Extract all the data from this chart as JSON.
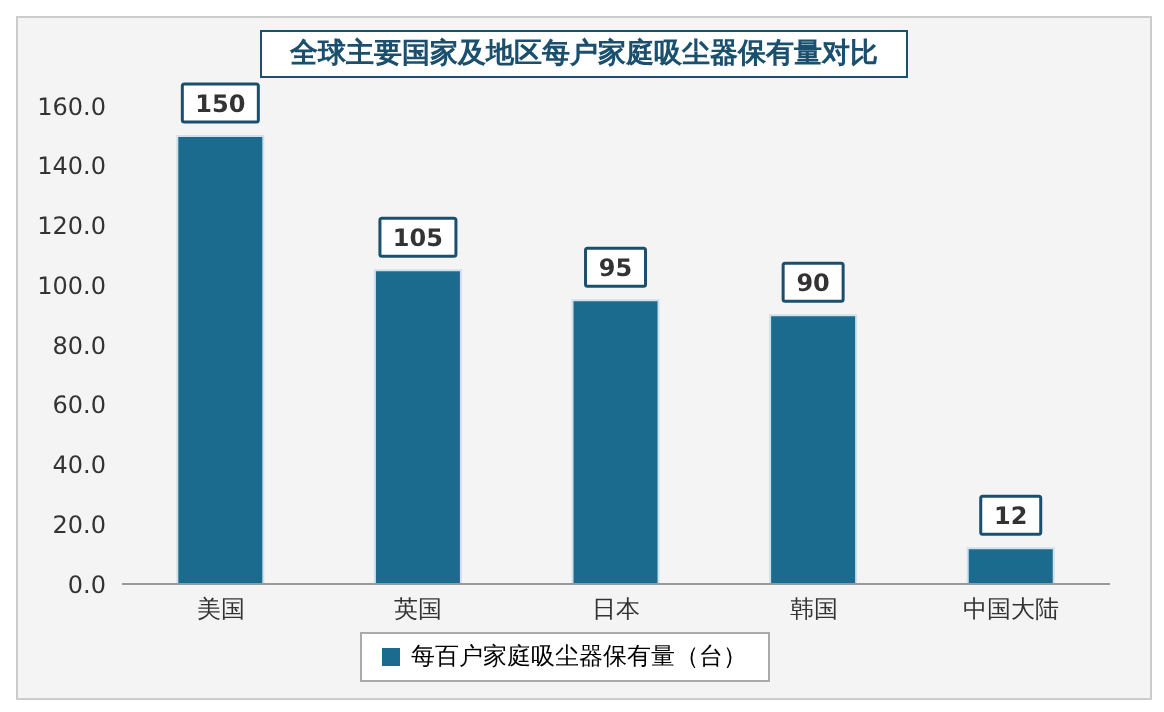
{
  "chart_data": {
    "type": "bar",
    "title": "全球主要国家及地区每户家庭吸尘器保有量对比",
    "categories": [
      "美国",
      "英国",
      "日本",
      "韩国",
      "中国大陆"
    ],
    "series": [
      {
        "name": "每百户家庭吸尘器保有量（台）",
        "color": "#1b6b8e",
        "values": [
          150,
          105,
          95,
          90,
          12
        ]
      }
    ],
    "ylim": [
      0,
      160
    ],
    "yticks": [
      {
        "value": 0,
        "label": "0.0"
      },
      {
        "value": 20,
        "label": "20.0"
      },
      {
        "value": 40,
        "label": "40.0"
      },
      {
        "value": 60,
        "label": "60.0"
      },
      {
        "value": 80,
        "label": "80.0"
      },
      {
        "value": 100,
        "label": "100.0"
      },
      {
        "value": 120,
        "label": "120.0"
      },
      {
        "value": 140,
        "label": "140.0"
      },
      {
        "value": 160,
        "label": "160.0"
      }
    ],
    "data_labels": true,
    "legend": "bottom",
    "grid": false
  }
}
